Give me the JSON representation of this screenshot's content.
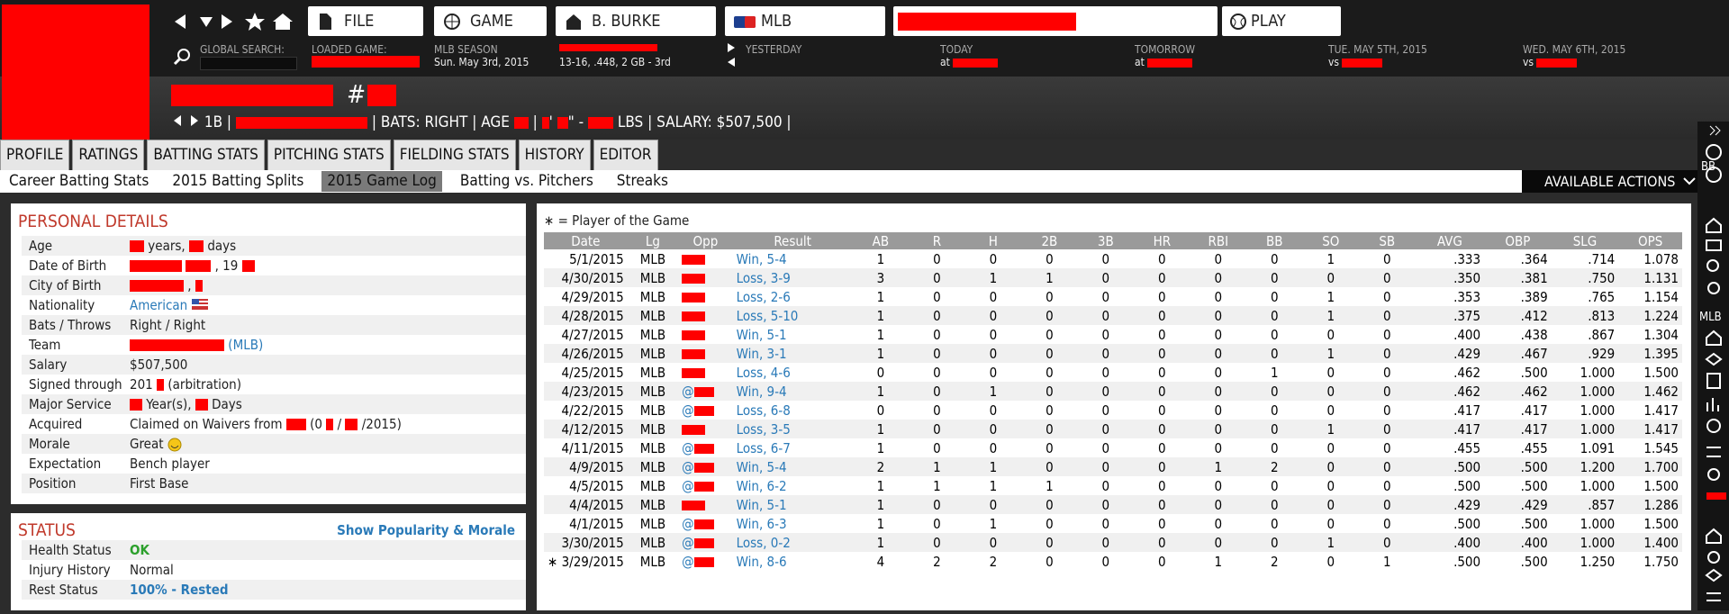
{
  "nav": {
    "file": "FILE",
    "game": "GAME",
    "manager": "B. BURKE",
    "league": "MLB",
    "play": "PLAY"
  },
  "info": {
    "search_label": "GLOBAL SEARCH:",
    "loaded_game_label": "LOADED GAME:",
    "season_label": "MLB SEASON",
    "season_date": "Sun. May 3rd, 2015",
    "record": "13-16, .448, 2 GB - 3rd",
    "yesterday": "YESTERDAY",
    "today": "TODAY",
    "today_at": "at",
    "tomorrow": "TOMORROW",
    "tomorrow_at": "at",
    "day4": "TUE. MAY 5TH, 2015",
    "day4_vs": "vs",
    "day5": "WED. MAY 6TH, 2015",
    "day5_vs": "vs"
  },
  "player": {
    "number_sign": "#",
    "position": "1B |",
    "bats": "| BATS: RIGHT | AGE",
    "sep": "|",
    "feet": "'",
    "inches": "\" -",
    "rest": "LBS | SALARY: $507,500 |"
  },
  "tabs": [
    "PROFILE",
    "RATINGS",
    "BATTING STATS",
    "PITCHING STATS",
    "FIELDING STATS",
    "HISTORY",
    "EDITOR"
  ],
  "subtabs": [
    "Career Batting Stats",
    "2015 Batting Splits",
    "2015 Game Log",
    "Batting vs. Pitchers",
    "Streaks"
  ],
  "actions": "AVAILABLE ACTIONS",
  "sidebar": {
    "group1": "BB",
    "group2": "MLB"
  },
  "details": {
    "title": "PERSONAL DETAILS",
    "rows": [
      {
        "label": "Age",
        "value": [
          "years,",
          "days"
        ]
      },
      {
        "label": "Date of Birth",
        "value": [
          ", 19"
        ]
      },
      {
        "label": "City of Birth",
        "value": [
          ", "
        ]
      },
      {
        "label": "Nationality",
        "value": [
          "American"
        ]
      },
      {
        "label": "Bats / Throws",
        "value": [
          "Right / Right"
        ]
      },
      {
        "label": "Team",
        "value": [
          "(MLB)"
        ]
      },
      {
        "label": "Salary",
        "value": [
          "$507,500"
        ]
      },
      {
        "label": "Signed through",
        "value": [
          "201",
          "(arbitration)"
        ]
      },
      {
        "label": "Major Service",
        "value": [
          "Year(s),",
          "Days"
        ]
      },
      {
        "label": "Acquired",
        "value": [
          "Claimed on Waivers from",
          "(0",
          "/",
          "/2015)"
        ]
      },
      {
        "label": "Morale",
        "value": [
          "Great"
        ]
      },
      {
        "label": "Expectation",
        "value": [
          "Bench player"
        ]
      },
      {
        "label": "Position",
        "value": [
          "First Base"
        ]
      }
    ]
  },
  "status": {
    "title": "STATUS",
    "link": "Show Popularity & Morale",
    "rows": [
      {
        "label": "Health Status",
        "value": "OK"
      },
      {
        "label": "Injury History",
        "value": "Normal"
      },
      {
        "label": "Rest Status",
        "value": "100% - Rested"
      }
    ]
  },
  "gamelog": {
    "note": "∗ = Player of the Game",
    "columns": [
      "Date",
      "Lg",
      "Opp",
      "Result",
      "AB",
      "R",
      "H",
      "2B",
      "3B",
      "HR",
      "RBI",
      "BB",
      "SO",
      "SB",
      "AVG",
      "OBP",
      "SLG",
      "OPS"
    ],
    "rows": [
      [
        "5/1/2015",
        "MLB",
        null,
        "Win, 5-4",
        "1",
        "0",
        "0",
        "0",
        "0",
        "0",
        "0",
        "0",
        "1",
        "0",
        ".333",
        ".364",
        ".714",
        "1.078"
      ],
      [
        "4/30/2015",
        "MLB",
        null,
        "Loss, 3-9",
        "3",
        "0",
        "1",
        "1",
        "0",
        "0",
        "0",
        "0",
        "0",
        "0",
        ".350",
        ".381",
        ".750",
        "1.131"
      ],
      [
        "4/29/2015",
        "MLB",
        null,
        "Loss, 2-6",
        "1",
        "0",
        "0",
        "0",
        "0",
        "0",
        "0",
        "0",
        "1",
        "0",
        ".353",
        ".389",
        ".765",
        "1.154"
      ],
      [
        "4/28/2015",
        "MLB",
        null,
        "Loss, 5-10",
        "1",
        "0",
        "0",
        "0",
        "0",
        "0",
        "0",
        "0",
        "1",
        "0",
        ".375",
        ".412",
        ".813",
        "1.224"
      ],
      [
        "4/27/2015",
        "MLB",
        null,
        "Win, 5-1",
        "1",
        "0",
        "0",
        "0",
        "0",
        "0",
        "0",
        "0",
        "0",
        "0",
        ".400",
        ".438",
        ".867",
        "1.304"
      ],
      [
        "4/26/2015",
        "MLB",
        null,
        "Win, 3-1",
        "1",
        "0",
        "0",
        "0",
        "0",
        "0",
        "0",
        "0",
        "1",
        "0",
        ".429",
        ".467",
        ".929",
        "1.395"
      ],
      [
        "4/25/2015",
        "MLB",
        null,
        "Loss, 4-6",
        "0",
        "0",
        "0",
        "0",
        "0",
        "0",
        "0",
        "1",
        "0",
        "0",
        ".462",
        ".500",
        "1.000",
        "1.500"
      ],
      [
        "4/23/2015",
        "MLB",
        "@",
        "Win, 9-4",
        "1",
        "0",
        "1",
        "0",
        "0",
        "0",
        "0",
        "0",
        "0",
        "0",
        ".462",
        ".462",
        "1.000",
        "1.462"
      ],
      [
        "4/22/2015",
        "MLB",
        "@",
        "Loss, 6-8",
        "0",
        "0",
        "0",
        "0",
        "0",
        "0",
        "0",
        "0",
        "0",
        "0",
        ".417",
        ".417",
        "1.000",
        "1.417"
      ],
      [
        "4/12/2015",
        "MLB",
        null,
        "Loss, 3-5",
        "1",
        "0",
        "0",
        "0",
        "0",
        "0",
        "0",
        "0",
        "1",
        "0",
        ".417",
        ".417",
        "1.000",
        "1.417"
      ],
      [
        "4/11/2015",
        "MLB",
        "@",
        "Loss, 6-7",
        "1",
        "0",
        "0",
        "0",
        "0",
        "0",
        "0",
        "0",
        "0",
        "0",
        ".455",
        ".455",
        "1.091",
        "1.545"
      ],
      [
        "4/9/2015",
        "MLB",
        "@",
        "Win, 5-4",
        "2",
        "1",
        "1",
        "0",
        "0",
        "0",
        "1",
        "2",
        "0",
        "0",
        ".500",
        ".500",
        "1.200",
        "1.700"
      ],
      [
        "4/5/2015",
        "MLB",
        "@",
        "Win, 6-2",
        "1",
        "1",
        "1",
        "1",
        "0",
        "0",
        "0",
        "0",
        "0",
        "0",
        ".500",
        ".500",
        "1.000",
        "1.500"
      ],
      [
        "4/4/2015",
        "MLB",
        null,
        "Win, 5-1",
        "1",
        "0",
        "0",
        "0",
        "0",
        "0",
        "0",
        "0",
        "0",
        "0",
        ".429",
        ".429",
        ".857",
        "1.286"
      ],
      [
        "4/1/2015",
        "MLB",
        "@",
        "Win, 6-3",
        "1",
        "0",
        "1",
        "0",
        "0",
        "0",
        "0",
        "0",
        "0",
        "0",
        ".500",
        ".500",
        "1.000",
        "1.500"
      ],
      [
        "3/30/2015",
        "MLB",
        "@",
        "Loss, 0-2",
        "1",
        "0",
        "0",
        "0",
        "0",
        "0",
        "0",
        "0",
        "1",
        "0",
        ".400",
        ".400",
        "1.000",
        "1.400"
      ],
      [
        "∗ 3/29/2015",
        "MLB",
        "@",
        "Win, 8-6",
        "4",
        "2",
        "2",
        "0",
        "0",
        "0",
        "1",
        "2",
        "0",
        "1",
        ".500",
        ".500",
        "1.250",
        "1.750"
      ]
    ]
  }
}
